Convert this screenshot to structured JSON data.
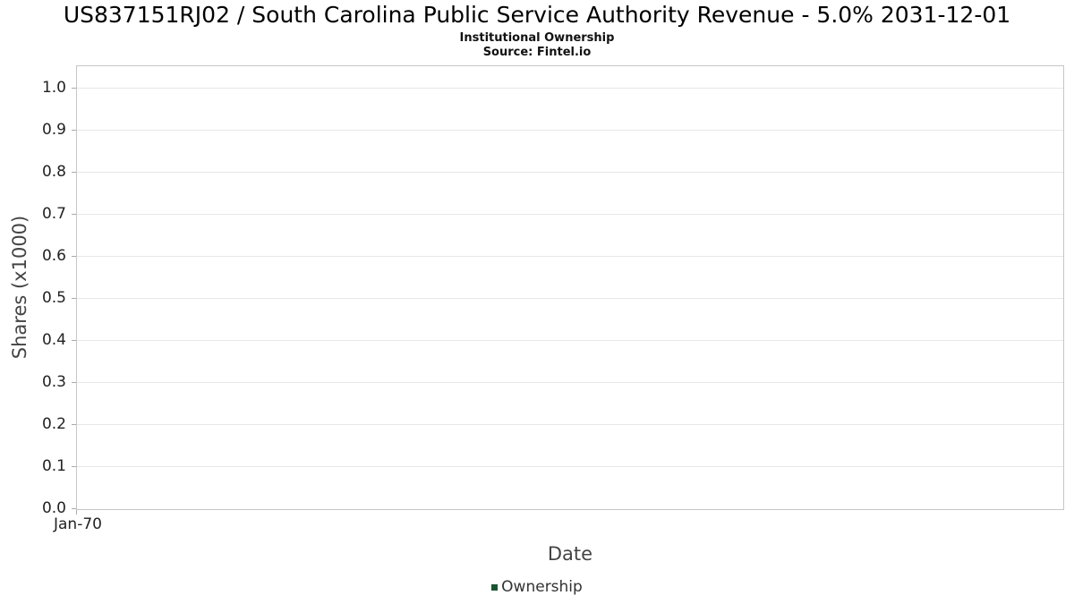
{
  "header": {
    "title": "US837151RJ02 / South Carolina Public Service Authority Revenue - 5.0% 2031-12-01",
    "subtitle": "Institutional Ownership",
    "source": "Source: Fintel.io"
  },
  "chart_data": {
    "type": "line",
    "title": "US837151RJ02 / South Carolina Public Service Authority Revenue - 5.0% 2031-12-01",
    "subtitle": "Institutional Ownership",
    "source": "Source: Fintel.io",
    "xlabel": "Date",
    "ylabel": "Shares (x1000)",
    "x_ticks": [
      "Jan-70"
    ],
    "y_ticks": [
      "0.0",
      "0.1",
      "0.2",
      "0.3",
      "0.4",
      "0.5",
      "0.6",
      "0.7",
      "0.8",
      "0.9",
      "1.0"
    ],
    "ylim": [
      0,
      1.053
    ],
    "grid": true,
    "legend_position": "bottom",
    "series": [
      {
        "name": "Ownership",
        "color": "#1a5632",
        "x": [],
        "values": []
      }
    ]
  }
}
